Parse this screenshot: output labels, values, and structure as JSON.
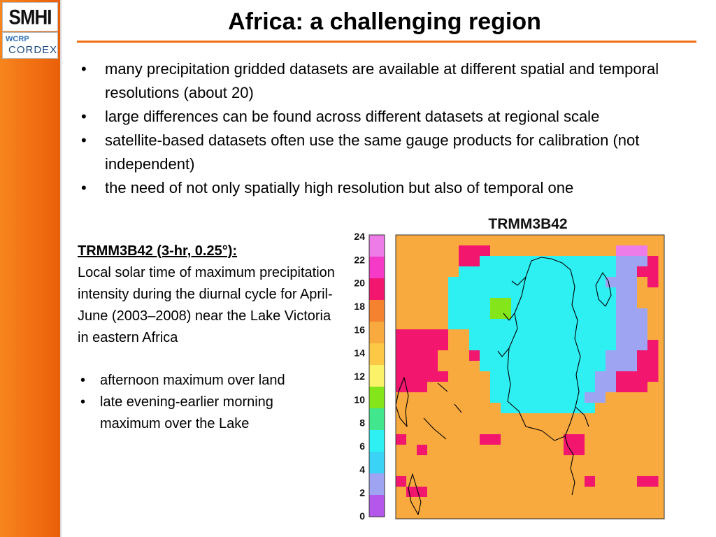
{
  "logos": {
    "smhi": "SMHI",
    "wcrp": "WCRP",
    "cordex": "CORDEX"
  },
  "slide": {
    "title": "Africa: a challenging region",
    "bullets": [
      "many precipitation gridded datasets are available at different spatial and temporal resolutions (about 20)",
      "large differences can be found across different datasets at regional scale",
      "satellite-based datasets often use the same gauge products for calibration (not independent)",
      "the need of not only spatially high resolution but also of temporal one"
    ],
    "left": {
      "heading": "TRMM3B42 (3-hr, 0.25°):",
      "description": "Local solar time of maximum precipitation intensity during the diurnal cycle for April-June (2003–2008) near the Lake Victoria in eastern Africa",
      "bullets": [
        "afternoon maximum over land",
        "late evening-earlier morning maximum over the Lake"
      ]
    }
  },
  "colors": {
    "accent": "#f26f12"
  },
  "chart_data": {
    "type": "heatmap",
    "title": "TRMM3B42",
    "colorbar": {
      "ticks": [
        "24",
        "22",
        "20",
        "18",
        "16",
        "14",
        "12",
        "10",
        "8",
        "6",
        "4",
        "2",
        "0"
      ],
      "bins": [
        "#ed7be8",
        "#f63ac8",
        "#f2166f",
        "#f4822e",
        "#f9aa3e",
        "#fcc846",
        "#fbf26a",
        "#84e61a",
        "#42e68d",
        "#2ef0f2",
        "#3ad2f5",
        "#9ea4f2",
        "#b557ea"
      ]
    }
  }
}
